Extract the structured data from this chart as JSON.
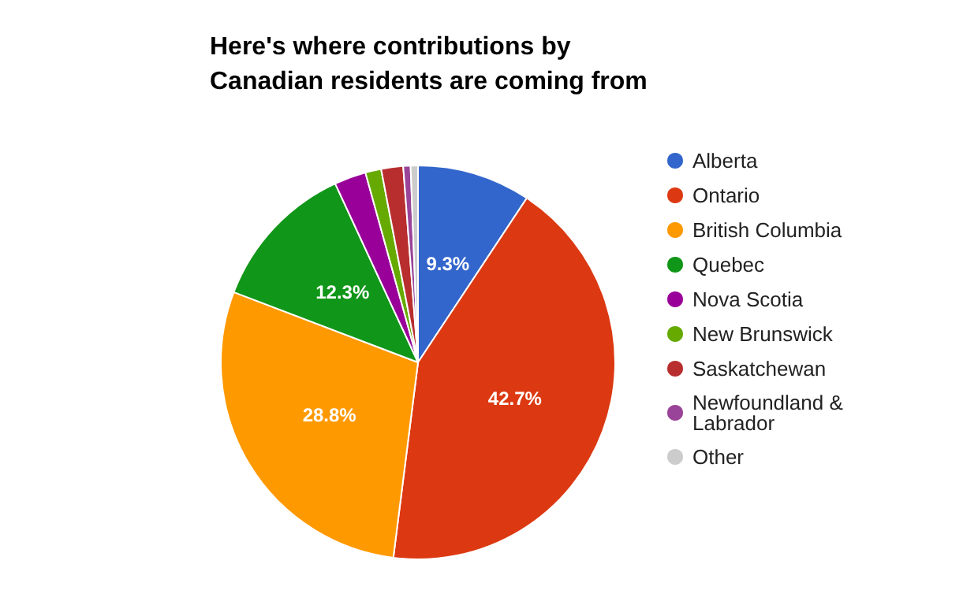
{
  "chart_data": {
    "type": "pie",
    "title": "Here's where contributions by Canadian residents are coming from",
    "categories": [
      "Alberta",
      "Ontario",
      "British Columbia",
      "Quebec",
      "Nova Scotia",
      "New Brunswick",
      "Saskatchewan",
      "Newfoundland & Labrador",
      "Other"
    ],
    "values": [
      9.3,
      42.7,
      28.8,
      12.3,
      2.6,
      1.3,
      1.8,
      0.6,
      0.6
    ],
    "value_labels": [
      "9.3%",
      "42.7%",
      "28.8%",
      "12.3%",
      null,
      null,
      null,
      null,
      null
    ],
    "colors": [
      "#3366cc",
      "#dc3912",
      "#ff9900",
      "#109618",
      "#990099",
      "#66aa00",
      "#b82e2e",
      "#994499",
      "#cccccc"
    ],
    "legend": "right"
  }
}
